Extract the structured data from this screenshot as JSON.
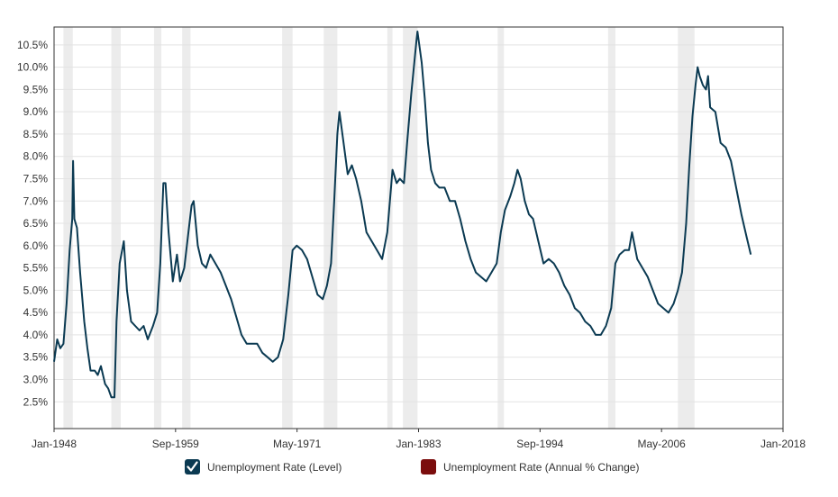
{
  "chart_data": {
    "type": "line",
    "title": "",
    "xlabel": "",
    "ylabel": "",
    "x_ticks": [
      "Jan-1948",
      "Sep-1959",
      "May-1971",
      "Jan-1983",
      "Sep-1994",
      "May-2006",
      "Jan-2018"
    ],
    "xlim": [
      1948.0,
      2018.0
    ],
    "y_ticks": [
      "2.5%",
      "3.0%",
      "3.5%",
      "4.0%",
      "4.5%",
      "5.0%",
      "5.5%",
      "6.0%",
      "6.5%",
      "7.0%",
      "7.5%",
      "8.0%",
      "8.5%",
      "9.0%",
      "9.5%",
      "10.0%",
      "10.5%"
    ],
    "ylim": [
      1.9,
      10.9
    ],
    "grid": "horizontal",
    "recessions": [
      [
        1948.9,
        1949.8
      ],
      [
        1953.5,
        1954.4
      ],
      [
        1957.6,
        1958.3
      ],
      [
        1960.3,
        1961.1
      ],
      [
        1969.9,
        1970.9
      ],
      [
        1973.9,
        1975.2
      ],
      [
        1980.0,
        1980.5
      ],
      [
        1981.5,
        1982.9
      ],
      [
        1990.6,
        1991.2
      ],
      [
        2001.2,
        2001.9
      ],
      [
        2007.9,
        2009.5
      ]
    ],
    "series": [
      {
        "name": "Unemployment Rate (Level)",
        "color": "#0b3a52",
        "points": [
          [
            1948.0,
            3.4
          ],
          [
            1948.3,
            3.9
          ],
          [
            1948.6,
            3.7
          ],
          [
            1948.9,
            3.8
          ],
          [
            1949.2,
            4.7
          ],
          [
            1949.5,
            5.9
          ],
          [
            1949.75,
            6.6
          ],
          [
            1949.83,
            7.9
          ],
          [
            1949.95,
            6.6
          ],
          [
            1950.2,
            6.4
          ],
          [
            1950.5,
            5.4
          ],
          [
            1950.9,
            4.3
          ],
          [
            1951.2,
            3.7
          ],
          [
            1951.5,
            3.2
          ],
          [
            1951.9,
            3.2
          ],
          [
            1952.2,
            3.1
          ],
          [
            1952.5,
            3.3
          ],
          [
            1952.9,
            2.9
          ],
          [
            1953.2,
            2.8
          ],
          [
            1953.5,
            2.6
          ],
          [
            1953.8,
            2.6
          ],
          [
            1954.0,
            4.3
          ],
          [
            1954.3,
            5.6
          ],
          [
            1954.7,
            6.1
          ],
          [
            1955.0,
            5.0
          ],
          [
            1955.4,
            4.3
          ],
          [
            1955.8,
            4.2
          ],
          [
            1956.2,
            4.1
          ],
          [
            1956.6,
            4.2
          ],
          [
            1957.0,
            3.9
          ],
          [
            1957.5,
            4.2
          ],
          [
            1957.9,
            4.5
          ],
          [
            1958.2,
            5.6
          ],
          [
            1958.5,
            7.4
          ],
          [
            1958.7,
            7.4
          ],
          [
            1959.0,
            6.3
          ],
          [
            1959.4,
            5.2
          ],
          [
            1959.8,
            5.8
          ],
          [
            1960.1,
            5.2
          ],
          [
            1960.5,
            5.5
          ],
          [
            1960.9,
            6.3
          ],
          [
            1961.2,
            6.9
          ],
          [
            1961.4,
            7.0
          ],
          [
            1961.8,
            6.0
          ],
          [
            1962.2,
            5.6
          ],
          [
            1962.6,
            5.5
          ],
          [
            1963.0,
            5.8
          ],
          [
            1963.5,
            5.6
          ],
          [
            1964.0,
            5.4
          ],
          [
            1964.5,
            5.1
          ],
          [
            1965.0,
            4.8
          ],
          [
            1965.5,
            4.4
          ],
          [
            1966.0,
            4.0
          ],
          [
            1966.5,
            3.8
          ],
          [
            1967.0,
            3.8
          ],
          [
            1967.5,
            3.8
          ],
          [
            1968.0,
            3.6
          ],
          [
            1968.5,
            3.5
          ],
          [
            1969.0,
            3.4
          ],
          [
            1969.5,
            3.5
          ],
          [
            1970.0,
            3.9
          ],
          [
            1970.5,
            4.9
          ],
          [
            1970.9,
            5.9
          ],
          [
            1971.3,
            6.0
          ],
          [
            1971.8,
            5.9
          ],
          [
            1972.3,
            5.7
          ],
          [
            1972.8,
            5.3
          ],
          [
            1973.3,
            4.9
          ],
          [
            1973.8,
            4.8
          ],
          [
            1974.2,
            5.1
          ],
          [
            1974.6,
            5.6
          ],
          [
            1974.9,
            7.0
          ],
          [
            1975.2,
            8.5
          ],
          [
            1975.4,
            9.0
          ],
          [
            1975.8,
            8.3
          ],
          [
            1976.2,
            7.6
          ],
          [
            1976.6,
            7.8
          ],
          [
            1977.0,
            7.5
          ],
          [
            1977.5,
            7.0
          ],
          [
            1978.0,
            6.3
          ],
          [
            1978.5,
            6.1
          ],
          [
            1979.0,
            5.9
          ],
          [
            1979.5,
            5.7
          ],
          [
            1980.0,
            6.3
          ],
          [
            1980.5,
            7.7
          ],
          [
            1980.9,
            7.4
          ],
          [
            1981.2,
            7.5
          ],
          [
            1981.6,
            7.4
          ],
          [
            1981.9,
            8.3
          ],
          [
            1982.3,
            9.4
          ],
          [
            1982.8,
            10.6
          ],
          [
            1982.9,
            10.8
          ],
          [
            1983.3,
            10.1
          ],
          [
            1983.6,
            9.3
          ],
          [
            1983.9,
            8.3
          ],
          [
            1984.2,
            7.7
          ],
          [
            1984.6,
            7.4
          ],
          [
            1985.0,
            7.3
          ],
          [
            1985.5,
            7.3
          ],
          [
            1986.0,
            7.0
          ],
          [
            1986.5,
            7.0
          ],
          [
            1987.0,
            6.6
          ],
          [
            1987.5,
            6.1
          ],
          [
            1988.0,
            5.7
          ],
          [
            1988.5,
            5.4
          ],
          [
            1989.0,
            5.3
          ],
          [
            1989.5,
            5.2
          ],
          [
            1990.0,
            5.4
          ],
          [
            1990.5,
            5.6
          ],
          [
            1990.9,
            6.3
          ],
          [
            1991.3,
            6.8
          ],
          [
            1991.8,
            7.1
          ],
          [
            1992.2,
            7.4
          ],
          [
            1992.5,
            7.7
          ],
          [
            1992.8,
            7.5
          ],
          [
            1993.2,
            7.0
          ],
          [
            1993.6,
            6.7
          ],
          [
            1994.0,
            6.6
          ],
          [
            1994.5,
            6.1
          ],
          [
            1995.0,
            5.6
          ],
          [
            1995.5,
            5.7
          ],
          [
            1996.0,
            5.6
          ],
          [
            1996.5,
            5.4
          ],
          [
            1997.0,
            5.1
          ],
          [
            1997.5,
            4.9
          ],
          [
            1998.0,
            4.6
          ],
          [
            1998.5,
            4.5
          ],
          [
            1999.0,
            4.3
          ],
          [
            1999.5,
            4.2
          ],
          [
            2000.0,
            4.0
          ],
          [
            2000.5,
            4.0
          ],
          [
            2001.0,
            4.2
          ],
          [
            2001.5,
            4.6
          ],
          [
            2001.9,
            5.6
          ],
          [
            2002.3,
            5.8
          ],
          [
            2002.8,
            5.9
          ],
          [
            2003.2,
            5.9
          ],
          [
            2003.5,
            6.3
          ],
          [
            2004.0,
            5.7
          ],
          [
            2004.5,
            5.5
          ],
          [
            2005.0,
            5.3
          ],
          [
            2005.5,
            5.0
          ],
          [
            2006.0,
            4.7
          ],
          [
            2006.5,
            4.6
          ],
          [
            2007.0,
            4.5
          ],
          [
            2007.5,
            4.7
          ],
          [
            2007.9,
            5.0
          ],
          [
            2008.3,
            5.4
          ],
          [
            2008.7,
            6.5
          ],
          [
            2009.0,
            7.8
          ],
          [
            2009.3,
            8.9
          ],
          [
            2009.6,
            9.6
          ],
          [
            2009.8,
            10.0
          ],
          [
            2010.0,
            9.8
          ],
          [
            2010.3,
            9.6
          ],
          [
            2010.6,
            9.5
          ],
          [
            2010.8,
            9.8
          ],
          [
            2011.0,
            9.1
          ],
          [
            2011.5,
            9.0
          ],
          [
            2012.0,
            8.3
          ],
          [
            2012.5,
            8.2
          ],
          [
            2013.0,
            7.9
          ],
          [
            2013.5,
            7.3
          ],
          [
            2014.0,
            6.7
          ],
          [
            2014.5,
            6.2
          ],
          [
            2014.9,
            5.8
          ]
        ]
      },
      {
        "name": "Unemployment Rate (Annual % Change)",
        "color": "#8b0000",
        "points": []
      }
    ]
  },
  "legend": {
    "level_label": "Unemployment Rate (Level)",
    "level_color": "#0b3a52",
    "change_label": "Unemployment Rate (Annual % Change)",
    "change_color": "#7b0d0d"
  }
}
